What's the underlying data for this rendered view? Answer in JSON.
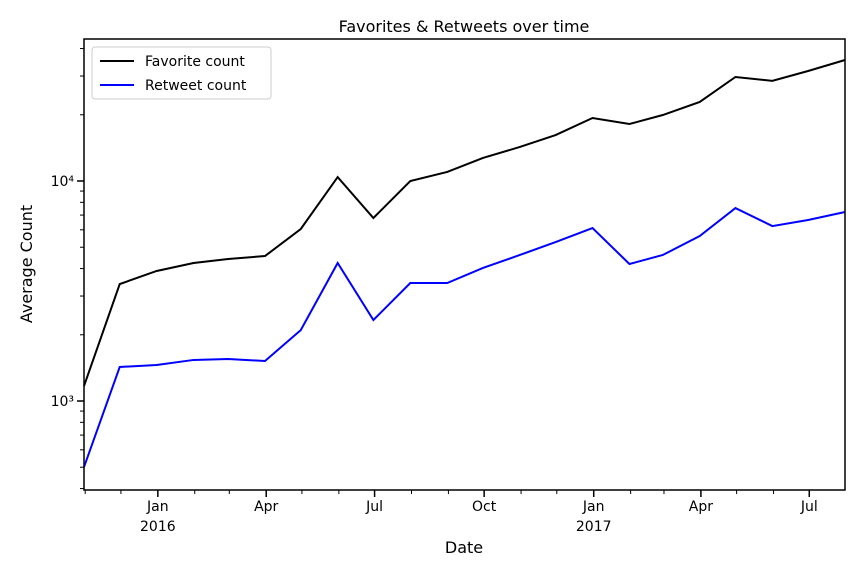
{
  "chart_data": {
    "type": "line",
    "title": "Favorites & Retweets over time",
    "xlabel": "Date",
    "ylabel": "Average Count",
    "x": [
      "2015-10-31",
      "2015-11-30",
      "2015-12-31",
      "2016-01-31",
      "2016-02-29",
      "2016-03-31",
      "2016-04-30",
      "2016-05-31",
      "2016-06-30",
      "2016-07-31",
      "2016-08-31",
      "2016-09-30",
      "2016-10-31",
      "2016-11-30",
      "2016-12-31",
      "2017-01-31",
      "2017-02-28",
      "2017-03-31",
      "2017-04-30",
      "2017-05-31",
      "2017-06-30",
      "2017-07-31"
    ],
    "series": [
      {
        "name": "Favorite count",
        "color": "#000000",
        "values": [
          1170,
          3400,
          3900,
          4240,
          4420,
          4560,
          6050,
          10420,
          6790,
          10000,
          10990,
          12730,
          14280,
          16180,
          19330,
          18160,
          19950,
          22860,
          29700,
          28510,
          31620,
          35480
        ]
      },
      {
        "name": "Retweet count",
        "color": "#0000ff",
        "values": [
          501,
          1428,
          1458,
          1537,
          1552,
          1520,
          2100,
          4240,
          2335,
          3437,
          3437,
          4025,
          4610,
          5280,
          6110,
          4195,
          4610,
          5620,
          7530,
          6240,
          6650,
          7230
        ]
      }
    ],
    "xlim": [
      "2015-10-31",
      "2017-07-31"
    ],
    "xticks": [
      {
        "value": "2016-01-01",
        "label": "Jan 2016"
      },
      {
        "value": "2016-04-01",
        "label": "Apr"
      },
      {
        "value": "2016-07-01",
        "label": "Jul"
      },
      {
        "value": "2016-10-01",
        "label": "Oct"
      },
      {
        "value": "2017-01-01",
        "label": "Jan 2017"
      },
      {
        "value": "2017-04-01",
        "label": "Apr"
      },
      {
        "value": "2017-07-01",
        "label": "Jul"
      }
    ],
    "xticks_minor": [
      "2015-11-01",
      "2015-12-01",
      "2016-02-01",
      "2016-03-01",
      "2016-05-01",
      "2016-06-01",
      "2016-08-01",
      "2016-09-01",
      "2016-11-01",
      "2016-12-01",
      "2017-02-01",
      "2017-03-01",
      "2017-05-01",
      "2017-06-01"
    ],
    "ylim": [
      394,
      44200
    ],
    "yscale": "log",
    "yticks": [
      {
        "value": 1000,
        "label": "10³"
      },
      {
        "value": 10000,
        "label": "10⁴"
      }
    ],
    "yticks_minor": [
      400,
      500,
      600,
      700,
      800,
      900,
      2000,
      3000,
      4000,
      5000,
      6000,
      7000,
      8000,
      9000,
      20000,
      30000,
      40000
    ],
    "legend": "upper left"
  }
}
